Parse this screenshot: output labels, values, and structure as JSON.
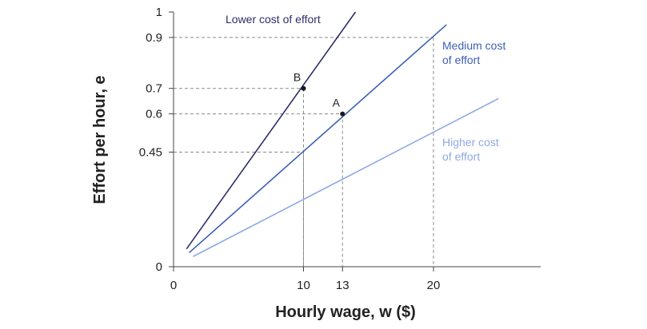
{
  "chart_data": {
    "type": "line",
    "xlabel": "Hourly wage, w ($)",
    "ylabel": "Effort per hour, e",
    "xlim": [
      0,
      29
    ],
    "ylim": [
      0,
      1
    ],
    "x_ticks": [
      0,
      10,
      13,
      20
    ],
    "y_ticks": [
      0,
      0.45,
      0.6,
      0.7,
      0.9,
      1
    ],
    "y_tick_labels": [
      "0",
      "0.45",
      "0.6",
      "0.7",
      "0.9",
      "1"
    ],
    "series": [
      {
        "name": "Lower cost of effort",
        "label_lines": [
          "Lower cost of effort"
        ],
        "color": "#2e2f6b",
        "x": [
          1,
          14
        ],
        "y": [
          0.07,
          1.0
        ]
      },
      {
        "name": "Medium cost of effort",
        "label_lines": [
          "Medium cost",
          "of effort"
        ],
        "color": "#3d5fb6",
        "x": [
          1.2,
          21
        ],
        "y": [
          0.055,
          0.95
        ]
      },
      {
        "name": "Higher cost of effort",
        "label_lines": [
          "Higher cost",
          "of effort"
        ],
        "color": "#8ea9e2",
        "x": [
          1.5,
          25
        ],
        "y": [
          0.04,
          0.66
        ]
      }
    ],
    "points": [
      {
        "label": "B",
        "x": 10,
        "y": 0.7
      },
      {
        "label": "A",
        "x": 13,
        "y": 0.6
      }
    ],
    "guides": [
      {
        "x": 10,
        "y": 0.7
      },
      {
        "x": 13,
        "y": 0.6
      },
      {
        "x": 20,
        "y": 0.9
      },
      {
        "x": 10,
        "y": 0.45
      }
    ],
    "grid": false
  }
}
